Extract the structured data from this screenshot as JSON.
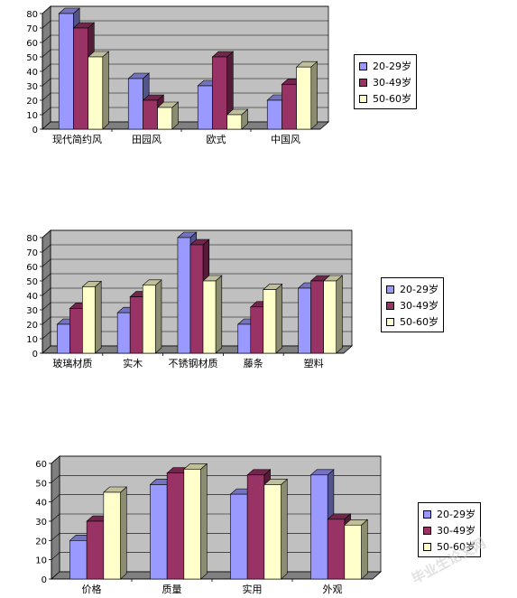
{
  "legend_labels": [
    "20-29岁",
    "30-49岁",
    "50-60岁"
  ],
  "colors": {
    "series": [
      "#9999ff",
      "#993366",
      "#ffffcc"
    ],
    "plot_back": "#c0c0c0",
    "plot_side": "#808080",
    "floor": "#808080"
  },
  "watermark": "毕业生论文网",
  "chart_data": [
    {
      "type": "bar",
      "title": "",
      "xlabel": "",
      "ylabel": "",
      "ylim": [
        0,
        80
      ],
      "yticks": [
        0,
        10,
        20,
        30,
        40,
        50,
        60,
        70,
        80
      ],
      "grid": true,
      "legend": "right",
      "categories": [
        "现代简约风",
        "田园风",
        "欧式",
        "中国风"
      ],
      "series": [
        {
          "name": "20-29岁",
          "values": [
            80,
            35,
            30,
            20
          ]
        },
        {
          "name": "30-49岁",
          "values": [
            70,
            20,
            50,
            31
          ]
        },
        {
          "name": "50-60岁",
          "values": [
            50,
            15,
            10,
            43
          ]
        }
      ]
    },
    {
      "type": "bar",
      "title": "",
      "xlabel": "",
      "ylabel": "",
      "ylim": [
        0,
        80
      ],
      "yticks": [
        0,
        10,
        20,
        30,
        40,
        50,
        60,
        70,
        80
      ],
      "grid": true,
      "legend": "right",
      "categories": [
        "玻璃材质",
        "实木",
        "不锈钢材质",
        "藤条",
        "塑料"
      ],
      "series": [
        {
          "name": "20-29岁",
          "values": [
            20,
            28,
            80,
            20,
            45
          ]
        },
        {
          "name": "30-49岁",
          "values": [
            31,
            39,
            75,
            32,
            50
          ]
        },
        {
          "name": "50-60岁",
          "values": [
            46,
            47,
            50,
            44,
            50
          ]
        }
      ]
    },
    {
      "type": "bar",
      "title": "",
      "xlabel": "",
      "ylabel": "",
      "ylim": [
        0,
        60
      ],
      "yticks": [
        0,
        10,
        20,
        30,
        40,
        50,
        60
      ],
      "grid": true,
      "legend": "right",
      "categories": [
        "价格",
        "质量",
        "实用",
        "外观"
      ],
      "series": [
        {
          "name": "20-29岁",
          "values": [
            20,
            49,
            44,
            54
          ]
        },
        {
          "name": "30-49岁",
          "values": [
            30,
            55,
            54,
            31
          ]
        },
        {
          "name": "50-60岁",
          "values": [
            45,
            57,
            49,
            28
          ]
        }
      ]
    }
  ]
}
